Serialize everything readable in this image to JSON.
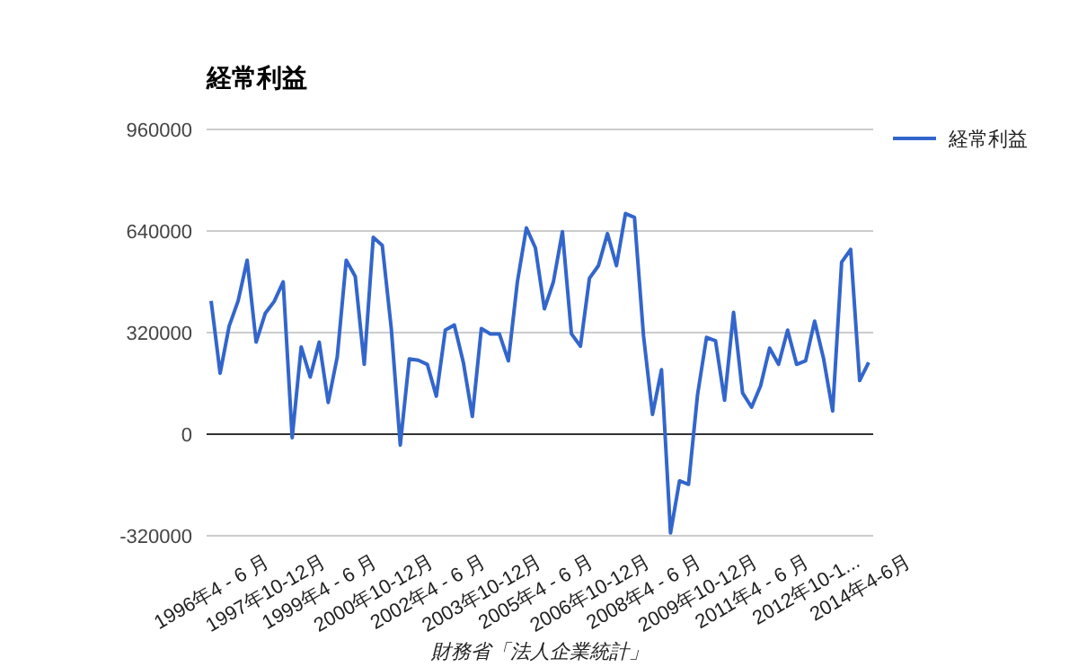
{
  "chart_data": {
    "type": "line",
    "title": "経常利益",
    "xlabel": "財務省「法人企業統計」",
    "categories": [
      "1996年4 - 6 月",
      null,
      null,
      null,
      null,
      null,
      "1997年10-12月",
      null,
      null,
      null,
      null,
      null,
      "1999年4 - 6 月",
      null,
      null,
      null,
      null,
      null,
      "2000年10-12月",
      null,
      null,
      null,
      null,
      null,
      "2002年4 - 6 月",
      null,
      null,
      null,
      null,
      null,
      "2003年10-12月",
      null,
      null,
      null,
      null,
      null,
      "2005年4 - 6 月",
      null,
      null,
      null,
      null,
      null,
      "2006年10-12月",
      null,
      null,
      null,
      null,
      null,
      "2008年4 - 6 月",
      null,
      null,
      null,
      null,
      null,
      "2009年10-12月",
      null,
      null,
      null,
      null,
      null,
      "2011年4 - 6 月",
      null,
      null,
      null,
      null,
      null,
      "2012年10-1...",
      null,
      null,
      null,
      null,
      null,
      "2014年4-6月",
      null
    ],
    "series": [
      {
        "name": "経常利益",
        "color": "#3366cc",
        "values": [
          420000,
          192000,
          340000,
          420000,
          548000,
          290000,
          380000,
          418000,
          480000,
          -11000,
          275000,
          180000,
          290000,
          100000,
          243000,
          548000,
          497000,
          220000,
          620000,
          595000,
          333000,
          -34000,
          237000,
          233000,
          220000,
          120000,
          328000,
          344000,
          226000,
          56000,
          333000,
          316000,
          316000,
          231000,
          480000,
          650000,
          587000,
          395000,
          480000,
          638000,
          316000,
          277000,
          491000,
          531000,
          632000,
          531000,
          695000,
          683000,
          311000,
          62000,
          203000,
          -311000,
          -147000,
          -158000,
          124000,
          305000,
          294000,
          107000,
          384000,
          130000,
          85000,
          152000,
          271000,
          220000,
          328000,
          220000,
          231000,
          356000,
          237000,
          73000,
          542000,
          582000,
          169000,
          226000
        ]
      }
    ],
    "ylim": [
      -320000,
      960000
    ],
    "yticks": [
      -320000,
      0,
      320000,
      640000,
      960000
    ],
    "grid": "y",
    "legend": "top right"
  }
}
